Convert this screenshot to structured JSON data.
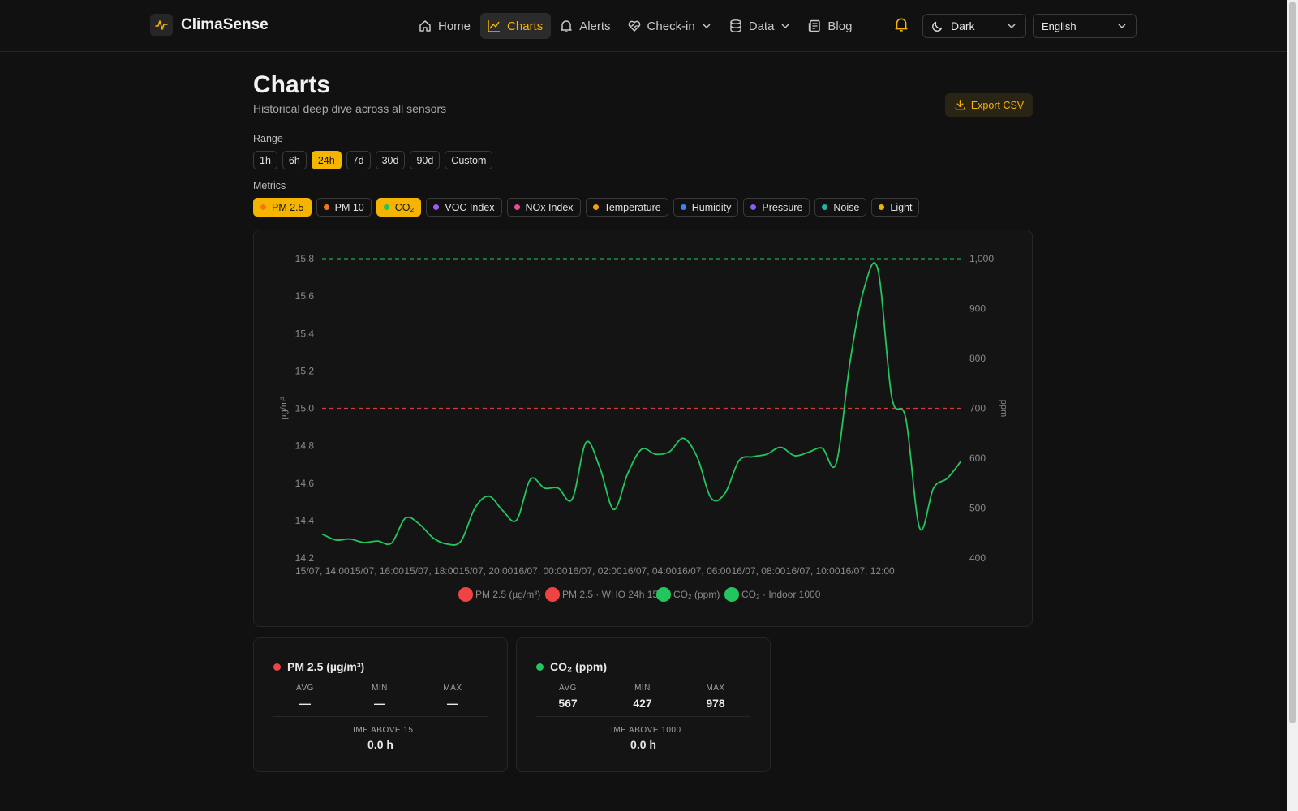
{
  "brand": {
    "name": "ClimaSense"
  },
  "nav": {
    "items": [
      {
        "label": "Home",
        "icon": "home-icon"
      },
      {
        "label": "Charts",
        "icon": "chart-line-icon",
        "active": true
      },
      {
        "label": "Alerts",
        "icon": "bell-icon"
      },
      {
        "label": "Check-in",
        "icon": "heart-pulse-icon",
        "dropdown": true
      },
      {
        "label": "Data",
        "icon": "database-icon",
        "dropdown": true
      },
      {
        "label": "Blog",
        "icon": "newspaper-icon"
      }
    ],
    "theme_value": "Dark",
    "language_value": "English"
  },
  "page": {
    "title": "Charts",
    "subtitle": "Historical deep dive across all sensors",
    "export_label": "Export CSV"
  },
  "range": {
    "label": "Range",
    "options": [
      "1h",
      "6h",
      "24h",
      "7d",
      "30d",
      "90d",
      "Custom"
    ],
    "selected": "24h"
  },
  "metrics": {
    "label": "Metrics",
    "items": [
      {
        "label": "PM 2.5",
        "color": "#f97316",
        "active": true
      },
      {
        "label": "PM 10",
        "color": "#f97316",
        "active": false
      },
      {
        "label": "CO₂",
        "color": "#22c55e",
        "active": true
      },
      {
        "label": "VOC Index",
        "color": "#a855f7",
        "active": false
      },
      {
        "label": "NOx Index",
        "color": "#ec4899",
        "active": false
      },
      {
        "label": "Temperature",
        "color": "#f59e0b",
        "active": false
      },
      {
        "label": "Humidity",
        "color": "#3b82f6",
        "active": false
      },
      {
        "label": "Pressure",
        "color": "#8b5cf6",
        "active": false
      },
      {
        "label": "Noise",
        "color": "#14b8a6",
        "active": false
      },
      {
        "label": "Light",
        "color": "#eab308",
        "active": false
      }
    ]
  },
  "chart_data": {
    "type": "line",
    "left_axis": {
      "label": "µg/m³",
      "ticks": [
        "15.8",
        "15.6",
        "15.4",
        "15.2",
        "15.0",
        "14.8",
        "14.6",
        "14.4",
        "14.2"
      ],
      "range": [
        14.2,
        15.8
      ]
    },
    "right_axis": {
      "label": "ppm",
      "ticks": [
        "1,000",
        "900",
        "800",
        "700",
        "600",
        "500",
        "400"
      ],
      "range": [
        400,
        1000
      ]
    },
    "x_ticks": [
      "15/07, 14:00",
      "15/07, 16:00",
      "15/07, 18:00",
      "15/07, 20:00",
      "16/07, 00:00",
      "16/07, 02:00",
      "16/07, 04:00",
      "16/07, 06:00",
      "16/07, 08:00",
      "16/07, 10:00",
      "16/07, 12:00"
    ],
    "reference_lines": [
      {
        "axis": "left",
        "value": 15.0,
        "color": "#ef4444"
      },
      {
        "axis": "right",
        "value": 1000,
        "color": "#22c55e"
      }
    ],
    "series": [
      {
        "name": "CO₂ (ppm)",
        "axis": "right",
        "color": "#22c55e",
        "values": [
          448,
          436,
          438,
          431,
          434,
          430,
          480,
          468,
          440,
          428,
          434,
          500,
          524,
          495,
          476,
          558,
          540,
          540,
          518,
          632,
          580,
          497,
          570,
          618,
          608,
          613,
          640,
          602,
          520,
          530,
          595,
          603,
          608,
          622,
          605,
          612,
          620,
          590,
          795,
          940,
          978,
          722,
          680,
          460,
          540,
          560,
          595
        ]
      }
    ],
    "legend": [
      {
        "label": "PM 2.5 (µg/m³)",
        "color": "#ef4444"
      },
      {
        "label": "PM 2.5 · WHO 24h 15",
        "color": "#ef4444"
      },
      {
        "label": "CO₂ (ppm)",
        "color": "#22c55e"
      },
      {
        "label": "CO₂ · Indoor 1000",
        "color": "#22c55e"
      }
    ]
  },
  "stats": [
    {
      "title": "PM 2.5 (µg/m³)",
      "color": "#ef4444",
      "avg_label": "AVG",
      "avg": "—",
      "min_label": "MIN",
      "min": "—",
      "max_label": "MAX",
      "max": "—",
      "foot_label": "TIME ABOVE 15",
      "foot_value": "0.0 h"
    },
    {
      "title": "CO₂ (ppm)",
      "color": "#22c55e",
      "avg_label": "AVG",
      "avg": "567",
      "min_label": "MIN",
      "min": "427",
      "max_label": "MAX",
      "max": "978",
      "foot_label": "TIME ABOVE 1000",
      "foot_value": "0.0 h"
    }
  ]
}
